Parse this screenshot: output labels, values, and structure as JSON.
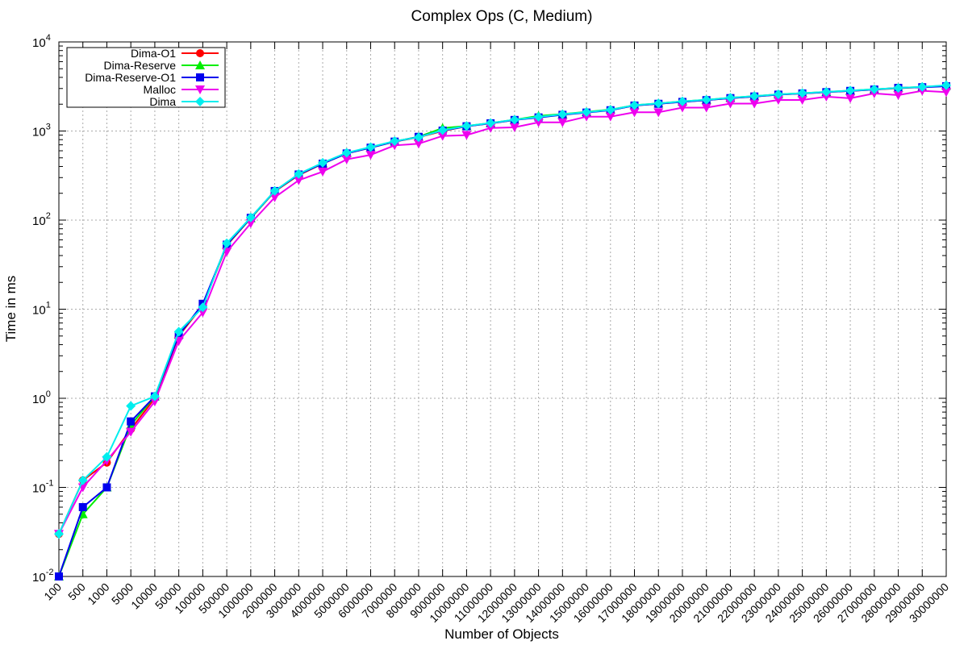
{
  "chart_data": {
    "type": "line",
    "title": "Complex Ops (C, Medium)",
    "xlabel": "Number of Objects",
    "ylabel": "Time in ms",
    "yscale": "log",
    "ylim": [
      0.01,
      10000
    ],
    "y_ticks": [
      {
        "base": "10",
        "exp": "-2"
      },
      {
        "base": "10",
        "exp": "-1"
      },
      {
        "base": "10",
        "exp": "0"
      },
      {
        "base": "10",
        "exp": "1"
      },
      {
        "base": "10",
        "exp": "2"
      },
      {
        "base": "10",
        "exp": "3"
      },
      {
        "base": "10",
        "exp": "4"
      }
    ],
    "grid": true,
    "legend_position": "top-left",
    "categories": [
      "100",
      "500",
      "1000",
      "5000",
      "10000",
      "50000",
      "100000",
      "500000",
      "1000000",
      "2000000",
      "3000000",
      "4000000",
      "5000000",
      "6000000",
      "7000000",
      "8000000",
      "9000000",
      "10000000",
      "11000000",
      "12000000",
      "13000000",
      "14000000",
      "15000000",
      "16000000",
      "17000000",
      "18000000",
      "19000000",
      "20000000",
      "21000000",
      "22000000",
      "23000000",
      "24000000",
      "25000000",
      "26000000",
      "27000000",
      "28000000",
      "29000000",
      "30000000"
    ],
    "series": [
      {
        "name": "Dima-O1",
        "color": "#ff0000",
        "marker": "circle",
        "values": [
          0.03,
          0.12,
          0.19,
          0.45,
          1.0,
          5.0,
          11.0,
          52,
          105,
          210,
          320,
          430,
          560,
          650,
          760,
          850,
          1000,
          1130,
          1220,
          1330,
          1430,
          1530,
          1620,
          1720,
          1930,
          2020,
          2130,
          2220,
          2340,
          2440,
          2560,
          2640,
          2730,
          2820,
          2920,
          3020,
          3110,
          3210
        ]
      },
      {
        "name": "Dima-Reserve",
        "color": "#00ee00",
        "marker": "triangle",
        "values": [
          0.01,
          0.05,
          0.1,
          0.5,
          1.05,
          5.2,
          11.0,
          53,
          105,
          212,
          325,
          435,
          565,
          655,
          765,
          860,
          1080,
          1140,
          1230,
          1340,
          1480,
          1550,
          1640,
          1740,
          1950,
          2040,
          2150,
          2240,
          2360,
          2460,
          2580,
          2660,
          2750,
          2840,
          2940,
          3040,
          3130,
          3230
        ]
      },
      {
        "name": "Dima-Reserve-O1",
        "color": "#0000ee",
        "marker": "square",
        "values": [
          0.01,
          0.06,
          0.1,
          0.55,
          1.05,
          5.1,
          11.5,
          53,
          106,
          212,
          325,
          430,
          560,
          650,
          760,
          860,
          1010,
          1130,
          1220,
          1330,
          1420,
          1520,
          1610,
          1710,
          1930,
          2020,
          2120,
          2220,
          2340,
          2440,
          2560,
          2640,
          2730,
          2820,
          2920,
          3050,
          3100,
          3180
        ]
      },
      {
        "name": "Malloc",
        "color": "#ee00ee",
        "marker": "triangle-down",
        "values": [
          0.03,
          0.1,
          0.2,
          0.42,
          0.92,
          4.4,
          9.2,
          44,
          92,
          180,
          280,
          350,
          480,
          540,
          690,
          720,
          880,
          900,
          1080,
          1100,
          1250,
          1250,
          1450,
          1450,
          1620,
          1620,
          1830,
          1830,
          2030,
          2030,
          2230,
          2230,
          2430,
          2330,
          2640,
          2530,
          2830,
          2730
        ]
      },
      {
        "name": "Dima",
        "color": "#00eeee",
        "marker": "diamond",
        "values": [
          0.03,
          0.12,
          0.22,
          0.82,
          1.05,
          5.6,
          10.5,
          55,
          107,
          213,
          330,
          440,
          570,
          660,
          770,
          850,
          1020,
          1140,
          1230,
          1340,
          1440,
          1540,
          1630,
          1730,
          1950,
          2040,
          2150,
          2240,
          2360,
          2460,
          2580,
          2660,
          2750,
          2840,
          2940,
          3040,
          3130,
          3260
        ]
      }
    ]
  }
}
